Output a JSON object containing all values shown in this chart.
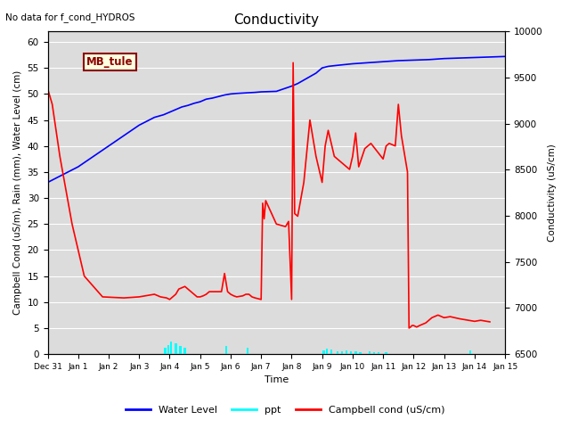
{
  "title": "Conductivity",
  "top_left_text": "No data for f_cond_HYDROS",
  "xlabel": "Time",
  "ylabel_left": "Campbell Cond (uS/m), Rain (mm), Water Level (cm)",
  "ylabel_right": "Conductivity (uS/cm)",
  "ylim_left": [
    0,
    62
  ],
  "ylim_right": [
    6500,
    10000
  ],
  "xlim": [
    0,
    15
  ],
  "xtick_labels": [
    "Dec 31",
    "Jan 1",
    "Jan 2",
    "Jan 3",
    "Jan 4",
    "Jan 5",
    "Jan 6",
    "Jan 7",
    "Jan 8",
    "Jan 9",
    "Jan 10",
    "Jan 11",
    "Jan 12",
    "Jan 13",
    "Jan 14",
    "Jan 15"
  ],
  "xtick_positions": [
    0,
    1,
    2,
    3,
    4,
    5,
    6,
    7,
    8,
    9,
    10,
    11,
    12,
    13,
    14,
    15
  ],
  "ytick_left": [
    0,
    5,
    10,
    15,
    20,
    25,
    30,
    35,
    40,
    45,
    50,
    55,
    60
  ],
  "ytick_right": [
    6500,
    7000,
    7500,
    8000,
    8500,
    9000,
    9500,
    10000
  ],
  "bg_color": "#dcdcdc",
  "legend_entries": [
    "Water Level",
    "ppt",
    "Campbell cond (uS/cm)"
  ],
  "annotation_box": {
    "text": "MB_tule"
  },
  "water_level_x": [
    0,
    0.5,
    1.0,
    1.5,
    2.0,
    2.5,
    3.0,
    3.5,
    3.8,
    4.0,
    4.2,
    4.4,
    4.6,
    4.8,
    5.0,
    5.2,
    5.4,
    5.6,
    5.8,
    6.0,
    6.2,
    6.5,
    6.8,
    7.0,
    7.5,
    8.0,
    8.2,
    8.5,
    8.8,
    9.0,
    9.2,
    9.5,
    10.0,
    10.5,
    11.0,
    11.5,
    12.0,
    12.5,
    13.0,
    13.5,
    14.0,
    14.5,
    15.0
  ],
  "water_level_y": [
    33,
    34.5,
    36,
    38,
    40,
    42,
    44,
    45.5,
    46,
    46.5,
    47,
    47.5,
    47.8,
    48.2,
    48.5,
    49.0,
    49.2,
    49.5,
    49.8,
    50.0,
    50.1,
    50.2,
    50.3,
    50.4,
    50.5,
    51.5,
    52.0,
    53.0,
    54.0,
    55.0,
    55.3,
    55.5,
    55.8,
    56.0,
    56.2,
    56.4,
    56.5,
    56.6,
    56.8,
    56.9,
    57.0,
    57.1,
    57.2
  ],
  "campbell_x": [
    0.0,
    0.15,
    0.4,
    0.8,
    1.2,
    1.8,
    2.5,
    3.0,
    3.2,
    3.5,
    3.7,
    3.9,
    4.0,
    4.1,
    4.2,
    4.3,
    4.5,
    4.6,
    4.7,
    4.8,
    4.9,
    5.0,
    5.1,
    5.2,
    5.3,
    5.5,
    5.7,
    5.8,
    5.9,
    6.0,
    6.1,
    6.2,
    6.4,
    6.5,
    6.6,
    6.7,
    6.8,
    7.0,
    7.05,
    7.1,
    7.15,
    7.5,
    7.8,
    7.9,
    8.0,
    8.05,
    8.1,
    8.2,
    8.4,
    8.6,
    8.8,
    9.0,
    9.1,
    9.2,
    9.3,
    9.4,
    9.5,
    9.6,
    9.7,
    9.8,
    9.9,
    10.0,
    10.1,
    10.2,
    10.4,
    10.6,
    10.8,
    11.0,
    11.1,
    11.2,
    11.4,
    11.5,
    11.6,
    11.8,
    11.85,
    11.9,
    11.95,
    12.0,
    12.1,
    12.2,
    12.4,
    12.6,
    12.8,
    13.0,
    13.2,
    13.5,
    13.8,
    14.0,
    14.2,
    14.5
  ],
  "campbell_y": [
    51,
    48,
    38,
    25,
    15,
    11,
    10.8,
    11,
    11.2,
    11.5,
    11.0,
    10.8,
    10.5,
    11.0,
    11.5,
    12.5,
    13.0,
    12.5,
    12.0,
    11.5,
    11.0,
    11.0,
    11.2,
    11.5,
    12.0,
    12.0,
    12.0,
    15.5,
    12.0,
    11.5,
    11.2,
    11.0,
    11.2,
    11.5,
    11.5,
    11.0,
    10.8,
    10.5,
    29.0,
    26.0,
    29.5,
    25.0,
    24.5,
    25.5,
    10.5,
    56.0,
    27.0,
    26.5,
    33.0,
    45.0,
    38.0,
    33.0,
    40.0,
    43.0,
    40.5,
    38.0,
    37.5,
    37.0,
    36.5,
    36.0,
    35.5,
    38.0,
    42.5,
    36.0,
    39.5,
    40.5,
    39.0,
    37.5,
    40.0,
    40.5,
    40.0,
    48.0,
    42.0,
    35.0,
    5.0,
    5.2,
    5.5,
    5.5,
    5.2,
    5.5,
    6.0,
    7.0,
    7.5,
    7.0,
    7.2,
    6.8,
    6.5,
    6.3,
    6.5,
    6.2
  ],
  "ppt_x": [
    3.85,
    3.95,
    4.05,
    4.2,
    4.35,
    4.5,
    5.85,
    6.55,
    9.05,
    9.15,
    9.3,
    9.5,
    9.65,
    9.8,
    9.95,
    10.1,
    10.25,
    10.55,
    10.7,
    10.85,
    11.1,
    13.85
  ],
  "ppt_y": [
    1.2,
    1.8,
    2.5,
    2.0,
    1.5,
    1.2,
    1.5,
    1.3,
    0.7,
    1.0,
    0.8,
    0.6,
    0.5,
    0.7,
    0.6,
    0.5,
    0.4,
    0.5,
    0.4,
    0.3,
    0.4,
    0.7
  ]
}
